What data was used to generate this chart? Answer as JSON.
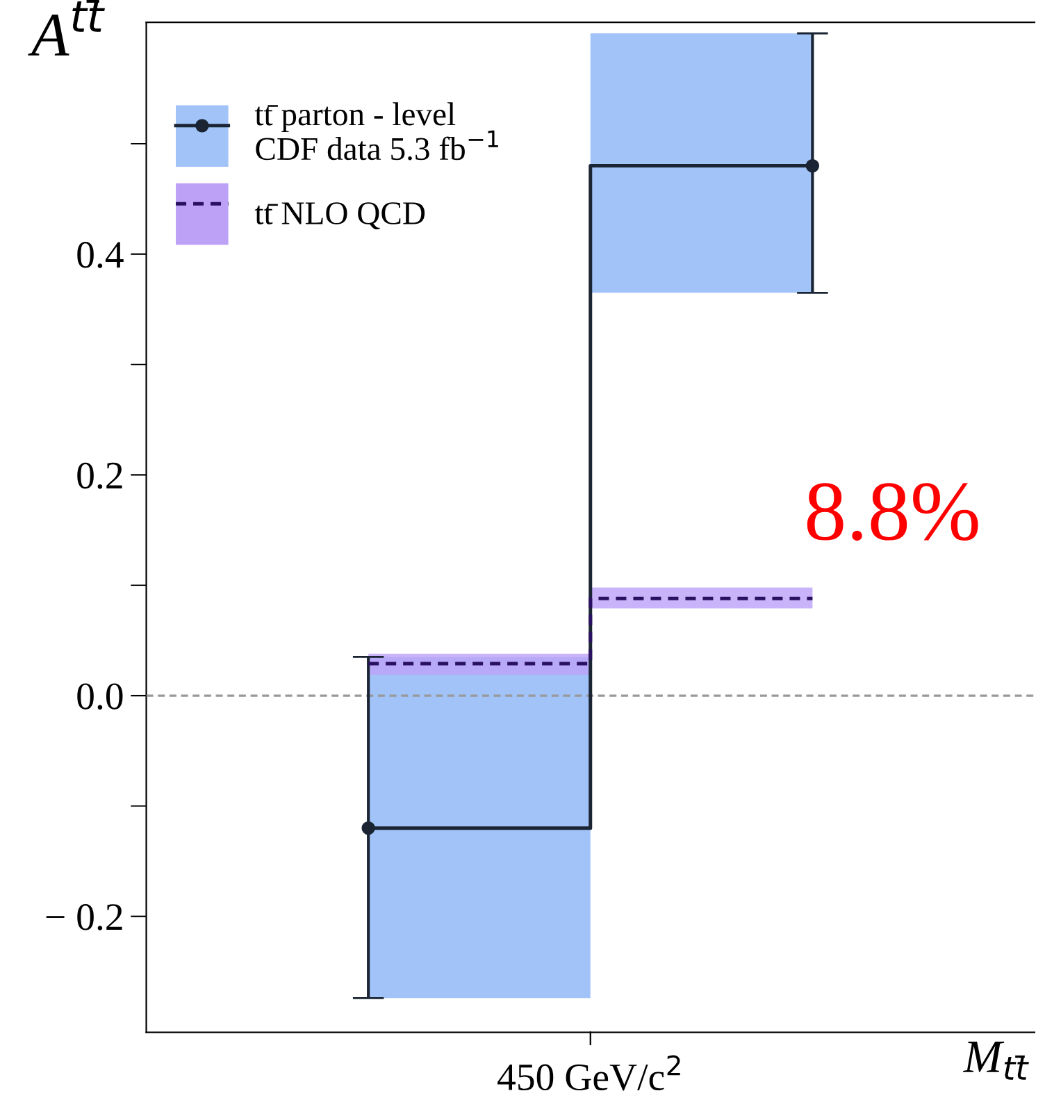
{
  "chart_data": {
    "type": "step",
    "ylabel": "A$^{tt̄}$",
    "xlabel": "M$_{tt̄}$",
    "categories": [
      null,
      null
    ],
    "ylim": [
      -0.305,
      0.61
    ],
    "yticks": [
      {
        "value": -0.2,
        "label": "− 0.2"
      },
      {
        "value": -0.1,
        "label": null
      },
      {
        "value": 0.0,
        "label": "0.0"
      },
      {
        "value": 0.1,
        "label": null
      },
      {
        "value": 0.2,
        "label": "0.2"
      },
      {
        "value": 0.3,
        "label": null
      },
      {
        "value": 0.4,
        "label": "0.4"
      },
      {
        "value": 0.5,
        "label": null
      }
    ],
    "series": [
      {
        "name": "tt̄ parton - level\nCDF data 5.3 fb$^{−1}$",
        "color": "#1a2433",
        "values": [
          -0.12,
          0.48
        ],
        "lower": [
          -0.274,
          0.365
        ],
        "upper": [
          0.035,
          0.6
        ],
        "errors": [
          [
            -0.274,
            0.035
          ],
          [
            0.365,
            0.6
          ]
        ],
        "marker": "circle",
        "line_style": "solid"
      },
      {
        "name": "tt̄ NLO QCD",
        "color": "#2a1060",
        "values": [
          0.029,
          0.088
        ],
        "lower": [
          0.019,
          0.079
        ],
        "upper": [
          0.038,
          0.098
        ],
        "marker": "none",
        "line_style": "dashed"
      }
    ],
    "ref_lines": [
      {
        "axis": "y",
        "value": 0.0,
        "color": "#999999",
        "line_style": "dashed"
      }
    ],
    "annotations": [
      "450 GeV/c$^{2}$",
      "8.8%"
    ],
    "legend": "top left",
    "grid": false
  }
}
